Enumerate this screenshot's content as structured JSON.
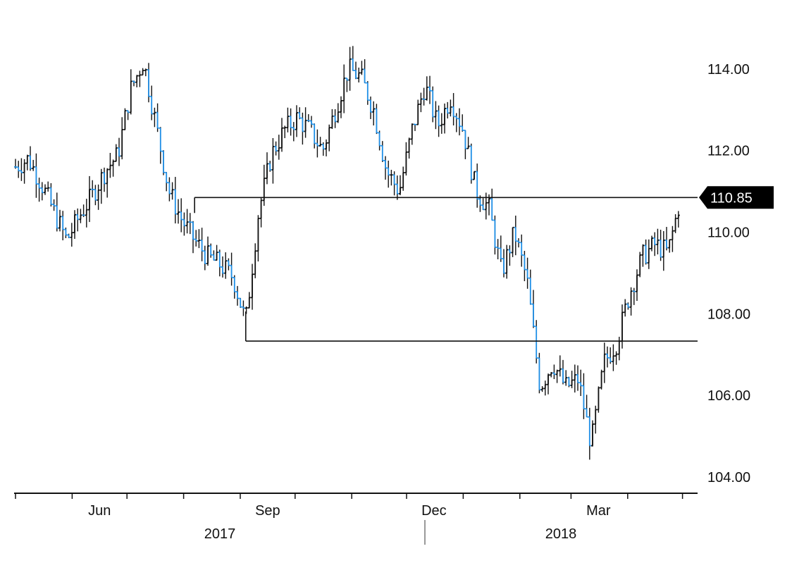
{
  "chart_data": {
    "type": "line",
    "title": "",
    "xlabel": "",
    "ylabel": "",
    "ylim": [
      103.6,
      115.0
    ],
    "y_ticks": [
      "104.00",
      "106.00",
      "108.00",
      "110.00",
      "112.00",
      "114.00"
    ],
    "y_axis_position": "right",
    "grid": false,
    "x_month_labels": [
      "Jun",
      "Sep",
      "Dec",
      "Mar"
    ],
    "x_year_labels": [
      "2017",
      "2018"
    ],
    "last_value": 110.85,
    "last_value_label": "110.85",
    "series_colors": {
      "up": "#1f8fe6",
      "down": "#111111",
      "line": "#111111",
      "label_bg": "#000000"
    },
    "dates": [
      "2017-05-01",
      "2017-05-08",
      "2017-05-15",
      "2017-05-22",
      "2017-05-29",
      "2017-06-05",
      "2017-06-12",
      "2017-06-19",
      "2017-06-26",
      "2017-07-03",
      "2017-07-10",
      "2017-07-17",
      "2017-07-24",
      "2017-07-31",
      "2017-08-07",
      "2017-08-14",
      "2017-08-21",
      "2017-08-28",
      "2017-09-04",
      "2017-09-11",
      "2017-09-18",
      "2017-09-25",
      "2017-10-02",
      "2017-10-09",
      "2017-10-16",
      "2017-10-23",
      "2017-10-30",
      "2017-11-06",
      "2017-11-13",
      "2017-11-20",
      "2017-11-27",
      "2017-12-04",
      "2017-12-11",
      "2017-12-18",
      "2017-12-25",
      "2018-01-01",
      "2018-01-08",
      "2018-01-15",
      "2018-01-22",
      "2018-01-29",
      "2018-02-05",
      "2018-02-12",
      "2018-02-19",
      "2018-02-26",
      "2018-03-05",
      "2018-03-12",
      "2018-03-19",
      "2018-03-26",
      "2018-04-02",
      "2018-04-09",
      "2018-04-16",
      "2018-04-23",
      "2018-04-30"
    ],
    "values": [
      111.6,
      111.8,
      111.2,
      110.5,
      109.8,
      110.4,
      110.9,
      111.5,
      111.9,
      113.5,
      114.2,
      112.6,
      111.0,
      110.3,
      109.8,
      109.4,
      109.2,
      108.9,
      107.8,
      110.5,
      111.9,
      112.5,
      112.8,
      112.5,
      112.0,
      113.0,
      114.0,
      113.8,
      113.0,
      111.5,
      111.0,
      112.5,
      113.6,
      112.6,
      113.3,
      112.5,
      111.0,
      110.6,
      109.0,
      110.0,
      108.8,
      106.2,
      106.8,
      106.2,
      106.4,
      104.8,
      106.8,
      107.3,
      108.5,
      109.4,
      109.7,
      109.5,
      110.85
    ],
    "annotations": [
      {
        "type": "horizontal-line",
        "value": 110.85,
        "from": "2017-08-07",
        "to": "end"
      },
      {
        "type": "horizontal-line",
        "value": 107.33,
        "from": "2017-09-04",
        "to": "end"
      }
    ]
  }
}
